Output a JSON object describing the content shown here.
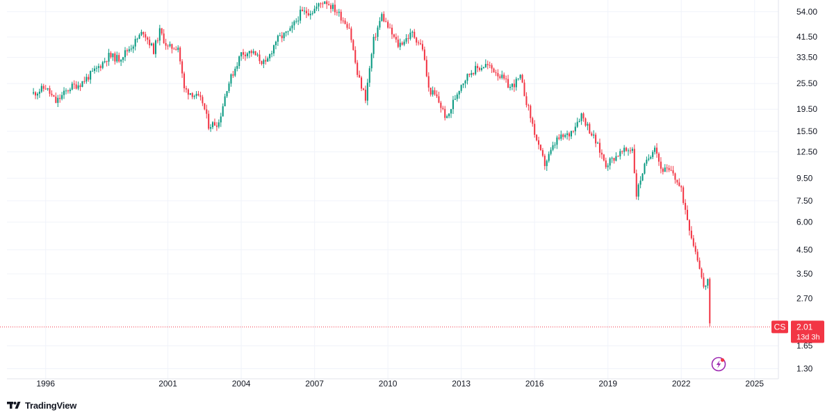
{
  "chart_data": {
    "type": "candlestick",
    "ticker": "CS",
    "scale": "log",
    "grid": true,
    "y_axis_position": "right",
    "ylim": [
      1.17,
      61
    ],
    "xlim": [
      "1994-06",
      "2025-12"
    ],
    "y_ticks": [
      "54.00",
      "41.50",
      "33.50",
      "25.50",
      "19.50",
      "15.50",
      "12.50",
      "9.50",
      "7.50",
      "6.00",
      "4.50",
      "3.50",
      "2.70",
      "1.65",
      "1.30"
    ],
    "x_ticks": [
      "1996",
      "2001",
      "2004",
      "2007",
      "2010",
      "2013",
      "2016",
      "2019",
      "2022",
      "2025"
    ],
    "last_price": 2.01,
    "last_price_label": "2.01",
    "countdown_label": "13d 3h",
    "up_color": "#089981",
    "down_color": "#f23645",
    "anchors": [
      [
        "1995-07",
        23.0
      ],
      [
        "1996-01",
        24.5
      ],
      [
        "1996-06",
        21.0
      ],
      [
        "1997-01",
        24.5
      ],
      [
        "1997-06",
        25.5
      ],
      [
        "1998-01",
        29.0
      ],
      [
        "1998-08",
        34.0
      ],
      [
        "1999-01",
        33.0
      ],
      [
        "1999-08",
        38.5
      ],
      [
        "2000-01",
        44.0
      ],
      [
        "2000-06",
        36.0
      ],
      [
        "2000-09",
        44.0
      ],
      [
        "2001-01",
        37.0
      ],
      [
        "2001-06",
        37.5
      ],
      [
        "2001-09",
        24.0
      ],
      [
        "2002-01",
        23.0
      ],
      [
        "2002-06",
        21.0
      ],
      [
        "2002-09",
        16.5
      ],
      [
        "2003-02",
        17.0
      ],
      [
        "2003-06",
        24.5
      ],
      [
        "2004-01",
        35.0
      ],
      [
        "2004-06",
        35.5
      ],
      [
        "2005-01",
        31.0
      ],
      [
        "2005-06",
        40.0
      ],
      [
        "2006-01",
        44.0
      ],
      [
        "2006-06",
        53.0
      ],
      [
        "2006-12",
        54.5
      ],
      [
        "2007-06",
        61.0
      ],
      [
        "2007-12",
        54.0
      ],
      [
        "2008-06",
        46.0
      ],
      [
        "2008-10",
        28.0
      ],
      [
        "2009-02",
        22.0
      ],
      [
        "2009-06",
        40.0
      ],
      [
        "2009-10",
        52.0
      ],
      [
        "2010-01",
        46.0
      ],
      [
        "2010-06",
        38.0
      ],
      [
        "2011-01",
        43.0
      ],
      [
        "2011-06",
        37.0
      ],
      [
        "2011-09",
        24.0
      ],
      [
        "2012-01",
        22.0
      ],
      [
        "2012-06",
        17.5
      ],
      [
        "2012-09",
        21.0
      ],
      [
        "2013-01",
        25.5
      ],
      [
        "2013-06",
        29.0
      ],
      [
        "2014-01",
        31.0
      ],
      [
        "2014-06",
        29.0
      ],
      [
        "2015-01",
        24.5
      ],
      [
        "2015-06",
        27.0
      ],
      [
        "2015-10",
        19.5
      ],
      [
        "2016-03",
        13.0
      ],
      [
        "2016-06",
        11.0
      ],
      [
        "2016-12",
        14.2
      ],
      [
        "2017-06",
        15.0
      ],
      [
        "2017-12",
        18.5
      ],
      [
        "2018-06",
        14.5
      ],
      [
        "2018-12",
        11.0
      ],
      [
        "2019-06",
        12.2
      ],
      [
        "2020-01",
        13.0
      ],
      [
        "2020-03",
        8.0
      ],
      [
        "2020-06",
        10.2
      ],
      [
        "2020-12",
        13.5
      ],
      [
        "2021-03",
        10.5
      ],
      [
        "2021-09",
        10.0
      ],
      [
        "2022-01",
        8.3
      ],
      [
        "2022-06",
        5.2
      ],
      [
        "2022-10",
        3.8
      ],
      [
        "2022-12",
        3.0
      ],
      [
        "2023-02",
        3.3
      ],
      [
        "2023-03",
        2.01
      ]
    ]
  },
  "branding": {
    "name": "TradingView"
  }
}
